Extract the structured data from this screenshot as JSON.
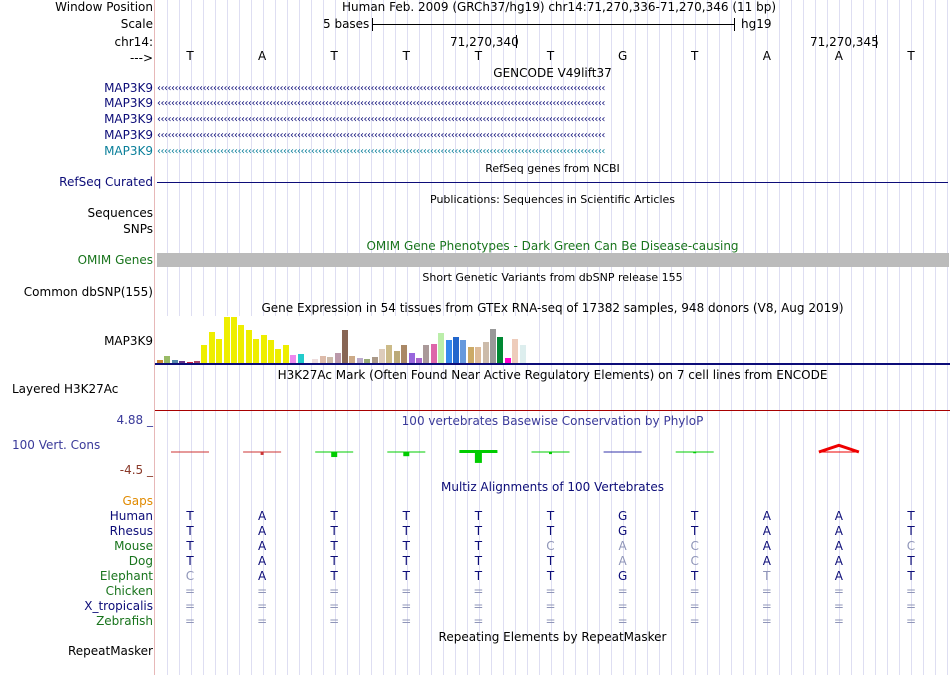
{
  "header": {
    "window_position_label": "Window Position",
    "assembly_text": "Human Feb. 2009 (GRCh37/hg19)   chr14:71,270,336-71,270,346 (11 bp)",
    "scale_label": "Scale",
    "scale_text": "5 bases",
    "scale_db": "hg19",
    "chrom_label": "chr14:",
    "coord_1": "71,270,340",
    "coord_2": "71,270,345",
    "strand_label": "--->"
  },
  "bases": [
    "T",
    "A",
    "T",
    "T",
    "T",
    "T",
    "G",
    "T",
    "A",
    "A",
    "T"
  ],
  "tracks": {
    "gencode_title": "GENCODE V49lift37",
    "gencode_genes": [
      {
        "name": "MAP3K9",
        "color": "#0c0c78"
      },
      {
        "name": "MAP3K9",
        "color": "#0c0c78"
      },
      {
        "name": "MAP3K9",
        "color": "#0c0c78"
      },
      {
        "name": "MAP3K9",
        "color": "#0c0c78"
      },
      {
        "name": "MAP3K9",
        "color": "#0a7f9a"
      }
    ],
    "gene_strand_glyphs": "‹‹‹‹‹‹‹‹‹‹‹‹‹‹‹‹‹‹‹‹‹‹‹‹‹‹‹‹‹‹‹‹‹‹‹‹‹‹‹‹‹‹‹‹‹‹‹‹‹‹‹‹‹‹‹‹‹‹‹‹‹‹‹‹‹‹‹‹‹‹‹‹‹‹‹‹‹‹‹‹‹‹‹‹‹‹‹‹‹‹‹‹‹‹‹‹‹‹‹‹‹‹‹‹‹‹‹‹‹‹‹‹‹‹‹‹‹‹‹‹‹‹‹‹‹‹‹‹",
    "refseq_title": "RefSeq genes from NCBI",
    "refseq_label": "RefSeq Curated",
    "pubs_title": "Publications: Sequences in Scientific Articles",
    "sequences_label": "Sequences",
    "snps_label": "SNPs",
    "omim_title": "OMIM Gene Phenotypes - Dark Green Can Be Disease-causing",
    "omim_label": "OMIM Genes",
    "dbsnp_title": "Short Genetic Variants from dbSNP release 155",
    "dbsnp_label": "Common dbSNP(155)",
    "gtex_title": "Gene Expression in 54 tissues from GTEx RNA-seq of 17382 samples, 948 donors (V8, Aug 2019)",
    "gtex_label": "MAP3K9",
    "h3k27_title": "H3K27Ac Mark (Often Found Near Active Regulatory Elements) on 7 cell lines from ENCODE",
    "h3k27_label": "Layered H3K27Ac",
    "phylop_title": "100 vertebrates Basewise Conservation by PhyloP",
    "phylop_label": "100 Vert. Cons",
    "phylop_max": "4.88 _",
    "phylop_min": "-4.5 _",
    "multiz_title": "Multiz Alignments of 100 Vertebrates",
    "gaps_label": "Gaps",
    "rmsk_title": "Repeating Elements by RepeatMasker",
    "rmsk_label": "RepeatMasker"
  },
  "gtex_bars": [
    {
      "level": 0.07,
      "color": "#cc8833"
    },
    {
      "level": 0.15,
      "color": "#99bb66"
    },
    {
      "level": 0.06,
      "color": "#5588aa"
    },
    {
      "level": 0.04,
      "color": "#663388"
    },
    {
      "level": 0.03,
      "color": "#cc2244"
    },
    {
      "level": 0.05,
      "color": "#aa4466"
    },
    {
      "level": 0.38,
      "color": "#eeee00"
    },
    {
      "level": 0.66,
      "color": "#eeee00"
    },
    {
      "level": 0.52,
      "color": "#eeee00"
    },
    {
      "level": 0.98,
      "color": "#eeee00"
    },
    {
      "level": 0.98,
      "color": "#eeee00"
    },
    {
      "level": 0.8,
      "color": "#eeee00"
    },
    {
      "level": 0.7,
      "color": "#eeee00"
    },
    {
      "level": 0.52,
      "color": "#eeee00"
    },
    {
      "level": 0.6,
      "color": "#eeee00"
    },
    {
      "level": 0.48,
      "color": "#eeee00"
    },
    {
      "level": 0.3,
      "color": "#eeee00"
    },
    {
      "level": 0.38,
      "color": "#eeee00"
    },
    {
      "level": 0.17,
      "color": "#ee88ee"
    },
    {
      "level": 0.2,
      "color": "#22cccc"
    },
    {
      "level": 0.0,
      "color": "#ffffff"
    },
    {
      "level": 0.08,
      "color": "#eedddd"
    },
    {
      "level": 0.14,
      "color": "#ddbbaa"
    },
    {
      "level": 0.12,
      "color": "#ccbbaa"
    },
    {
      "level": 0.22,
      "color": "#bb99aa"
    },
    {
      "level": 0.7,
      "color": "#886655"
    },
    {
      "level": 0.14,
      "color": "#ccaa88"
    },
    {
      "level": 0.1,
      "color": "#bbaacc"
    },
    {
      "level": 0.08,
      "color": "#99aa77"
    },
    {
      "level": 0.12,
      "color": "#aa9988"
    },
    {
      "level": 0.3,
      "color": "#ddccbb"
    },
    {
      "level": 0.38,
      "color": "#ccbb88"
    },
    {
      "level": 0.26,
      "color": "#bbaa77"
    },
    {
      "level": 0.38,
      "color": "#aa8866"
    },
    {
      "level": 0.22,
      "color": "#9966dd"
    },
    {
      "level": 0.1,
      "color": "#aa66cc"
    },
    {
      "level": 0.38,
      "color": "#aa9999"
    },
    {
      "level": 0.4,
      "color": "#dd66aa"
    },
    {
      "level": 0.64,
      "color": "#bbeeaa"
    },
    {
      "level": 0.48,
      "color": "#3388ee"
    },
    {
      "level": 0.55,
      "color": "#2266cc"
    },
    {
      "level": 0.48,
      "color": "#6699dd"
    },
    {
      "level": 0.34,
      "color": "#ccaa66"
    },
    {
      "level": 0.34,
      "color": "#ddbb99"
    },
    {
      "level": 0.44,
      "color": "#ccbbaa"
    },
    {
      "level": 0.72,
      "color": "#999999"
    },
    {
      "level": 0.56,
      "color": "#008833"
    },
    {
      "level": 0.1,
      "color": "#ff00cc"
    },
    {
      "level": 0.52,
      "color": "#eeccbb"
    },
    {
      "level": 0.38,
      "color": "#ddeeee"
    }
  ],
  "phylop": [
    {
      "value": 0.0,
      "color": "#cc3333",
      "style": "thin"
    },
    {
      "value": -0.7,
      "color": "#cc3333",
      "style": "tick"
    },
    {
      "value": -1.2,
      "color": "#00cc00",
      "style": "bar"
    },
    {
      "value": -1.0,
      "color": "#00cc00",
      "style": "bar"
    },
    {
      "value": -2.6,
      "color": "#00cc00",
      "style": "bigbar"
    },
    {
      "value": -0.5,
      "color": "#00cc00",
      "style": "tick"
    },
    {
      "value": -0.2,
      "color": "#3333aa",
      "style": "thin"
    },
    {
      "value": -0.3,
      "color": "#00cc00",
      "style": "tick"
    },
    {
      "value": 0.0,
      "color": "#ffffff",
      "style": "none"
    },
    {
      "value": 1.6,
      "color": "#ee0000",
      "style": "chevron"
    },
    {
      "value": 0.0,
      "color": "#ffffff",
      "style": "none"
    }
  ],
  "species": [
    {
      "name": "Human",
      "color": "#0c0c78",
      "bases": [
        "T",
        "A",
        "T",
        "T",
        "T",
        "T",
        "G",
        "T",
        "A",
        "A",
        "T"
      ],
      "dim": []
    },
    {
      "name": "Rhesus",
      "color": "#0c0c78",
      "bases": [
        "T",
        "A",
        "T",
        "T",
        "T",
        "T",
        "G",
        "T",
        "A",
        "A",
        "T"
      ],
      "dim": []
    },
    {
      "name": "Mouse",
      "color": "#18741c",
      "bases": [
        "T",
        "A",
        "T",
        "T",
        "T",
        "C",
        "A",
        "C",
        "A",
        "A",
        "C"
      ],
      "dim": [
        5,
        6,
        7,
        10
      ]
    },
    {
      "name": "Dog",
      "color": "#18741c",
      "bases": [
        "T",
        "A",
        "T",
        "T",
        "T",
        "T",
        "A",
        "C",
        "A",
        "A",
        "T"
      ],
      "dim": [
        6,
        7
      ]
    },
    {
      "name": "Elephant",
      "color": "#18741c",
      "bases": [
        "C",
        "A",
        "T",
        "T",
        "T",
        "T",
        "G",
        "T",
        "T",
        "A",
        "T"
      ],
      "dim": [
        0,
        8
      ]
    },
    {
      "name": "Chicken",
      "color": "#18741c",
      "bases": [
        "=",
        "=",
        "=",
        "=",
        "=",
        "=",
        "=",
        "=",
        "=",
        "=",
        "="
      ],
      "dim": [
        0,
        1,
        2,
        3,
        4,
        5,
        6,
        7,
        8,
        9,
        10
      ]
    },
    {
      "name": "X_tropicalis",
      "color": "#0c0c78",
      "bases": [
        "=",
        "=",
        "=",
        "=",
        "=",
        "=",
        "=",
        "=",
        "=",
        "=",
        "="
      ],
      "dim": [
        0,
        1,
        2,
        3,
        4,
        5,
        6,
        7,
        8,
        9,
        10
      ]
    },
    {
      "name": "Zebrafish",
      "color": "#18741c",
      "bases": [
        "=",
        "=",
        "=",
        "=",
        "=",
        "=",
        "=",
        "=",
        "=",
        "=",
        "="
      ],
      "dim": [
        0,
        1,
        2,
        3,
        4,
        5,
        6,
        7,
        8,
        9,
        10
      ]
    }
  ],
  "colors": {
    "label_navy": "#0c0c78",
    "label_green": "#18741c",
    "omim_green": "#18741c",
    "gaps_orange": "#e08a00",
    "phylop_blue": "#3a3a9a",
    "phylop_neg": "#8a3a2a",
    "refseq_line": "#0c0c78",
    "gtex_line": "#0c0c78",
    "h3k27_line": "#a80000",
    "omim_bar": "#bbbbbb",
    "dim_base": "#8f95b8"
  }
}
